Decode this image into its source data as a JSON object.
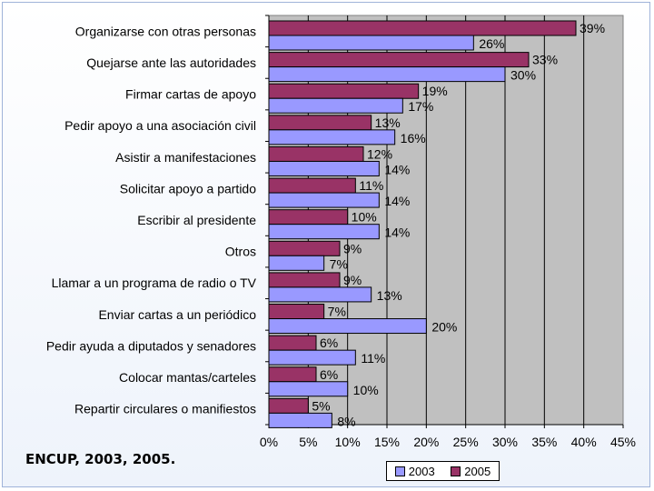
{
  "source_note": "ENCUP, 2003, 2005.",
  "chart_data": {
    "type": "bar",
    "orientation": "horizontal",
    "title": "",
    "xlabel": "",
    "ylabel": "",
    "xlim": [
      0,
      45
    ],
    "xticks": [
      "0%",
      "5%",
      "10%",
      "15%",
      "20%",
      "25%",
      "30%",
      "35%",
      "40%",
      "45%"
    ],
    "grid": true,
    "legend_position": "bottom",
    "categories": [
      "Organizarse con otras personas",
      "Quejarse ante las autoridades",
      "Firmar cartas de apoyo",
      "Pedir apoyo a una asociación civil",
      "Asistir a manifestaciones",
      "Solicitar apoyo a partido",
      "Escribir al presidente",
      "Otros",
      "Llamar a un programa de radio o TV",
      "Enviar cartas a un periódico",
      "Pedir ayuda a diputados y senadores",
      "Colocar mantas/carteles",
      "Repartir circulares o manifiestos"
    ],
    "series": [
      {
        "name": "2005",
        "color": "#993366",
        "values": [
          39,
          33,
          19,
          13,
          12,
          11,
          10,
          9,
          9,
          7,
          6,
          6,
          5
        ],
        "labels": [
          "39%",
          "33%",
          "19%",
          "13%",
          "12%",
          "11%",
          "10%",
          "9%",
          "9%",
          "7%",
          "6%",
          "6%",
          "5%"
        ]
      },
      {
        "name": "2003",
        "color": "#9999ff",
        "values": [
          26,
          30,
          17,
          16,
          14,
          14,
          14,
          7,
          13,
          20,
          11,
          10,
          8
        ],
        "labels": [
          "26%",
          "30%",
          "17%",
          "16%",
          "14%",
          "14%",
          "14%",
          "7%",
          "13%",
          "20%",
          "11%",
          "10%",
          "8%"
        ]
      }
    ],
    "legend": [
      {
        "name": "2003",
        "color": "#9999ff"
      },
      {
        "name": "2005",
        "color": "#993366"
      }
    ]
  }
}
